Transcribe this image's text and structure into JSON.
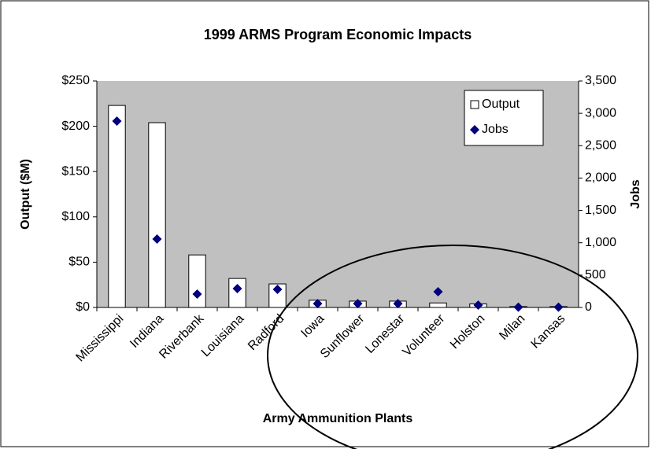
{
  "chart_data": {
    "type": "bar",
    "title": "1999 ARMS Program Economic Impacts",
    "x_label": "Army Ammunition Plants",
    "y_label": "Output ($M)",
    "y2_label": "Jobs",
    "categories": [
      "Mississippi",
      "Indiana",
      "Riverbank",
      "Louisiana",
      "Radford",
      "Iowa",
      "Sunflower",
      "Lonestar",
      "Volunteer",
      "Holston",
      "Milan",
      "Kansas"
    ],
    "series": [
      {
        "name": "Output",
        "type": "bar",
        "color": "#ffffff",
        "values": [
          223,
          204,
          58,
          32,
          26,
          8,
          7,
          7,
          5,
          4,
          1,
          1
        ]
      },
      {
        "name": "Jobs",
        "type": "scatter",
        "axis": "y2",
        "color": "#000080",
        "values": [
          2880,
          1057,
          207,
          292,
          280,
          60,
          60,
          60,
          243,
          36,
          5,
          5
        ]
      }
    ],
    "ylim": [
      0,
      250
    ],
    "yticks": [
      {
        "value": 0,
        "label": "$0"
      },
      {
        "value": 50,
        "label": "$50"
      },
      {
        "value": 100,
        "label": "$100"
      },
      {
        "value": 150,
        "label": "$150"
      },
      {
        "value": 200,
        "label": "$200"
      },
      {
        "value": 250,
        "label": "$250"
      }
    ],
    "y2lim": [
      0,
      3500
    ],
    "y2ticks": [
      0,
      500,
      {
        "value": 1000,
        "label": "1,000"
      },
      {
        "value": 1500,
        "label": "1,500"
      },
      {
        "value": 2000,
        "label": "2,000"
      },
      {
        "value": 2500,
        "label": "2,500"
      },
      {
        "value": 3000,
        "label": "3,000"
      },
      {
        "value": 3500,
        "label": "3,500"
      }
    ],
    "plot_background": "#c0c0c0",
    "legend": "upper right"
  }
}
